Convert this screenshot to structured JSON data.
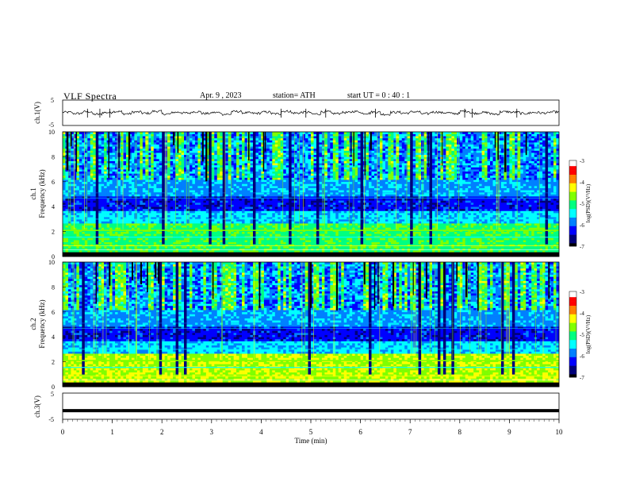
{
  "header": {
    "title": "VLF  Spectra",
    "date": "Apr. 9  , 2023",
    "station": "station= ATH",
    "start": "start  UT  =    0  : 40 : 1"
  },
  "chart_data": [
    {
      "type": "line",
      "panel": "ch1-waveform",
      "ylabel": "ch.1(V)",
      "ylim": [
        -5,
        5
      ],
      "yticks": [
        "5",
        "-5"
      ],
      "series": [
        {
          "values": [
            0.2,
            -0.3,
            0.4,
            -0.6,
            0.1,
            0.5,
            -0.4,
            0.3,
            -0.2,
            0.6,
            -0.5,
            0.2,
            -0.1,
            0.4,
            -0.3,
            0.1,
            -0.6,
            0.5,
            0.0,
            -0.2,
            0.3,
            -0.4,
            0.6,
            -0.1,
            0.2,
            -0.5,
            0.4,
            -0.3,
            0.1,
            0.5,
            -0.2,
            0.3,
            -0.6,
            0.2,
            -0.1,
            0.4,
            -0.4,
            0.3,
            0.0,
            -0.3,
            0.6,
            -0.2,
            0.1,
            -0.5,
            0.4,
            0.2,
            -0.3,
            0.1,
            -0.1,
            0.3
          ]
        }
      ],
      "spikes": [
        0.5,
        0.75,
        0.95,
        4.4,
        4.9,
        5.3,
        6.3,
        8.1,
        8.25,
        9.15
      ]
    },
    {
      "type": "heatmap",
      "panel": "ch1-spectrogram",
      "ylabel": "ch.1\nFrequency  (kHz)",
      "ylim": [
        0,
        10
      ],
      "yticks": [
        "0",
        "2",
        "4",
        "6",
        "8",
        "10"
      ],
      "colorbar": {
        "label": "log(PSD)(V²/Hz)",
        "ticks": [
          "-3",
          "-4",
          "-5",
          "-6",
          "-7"
        ],
        "range": [
          -7,
          -3
        ]
      }
    },
    {
      "type": "heatmap",
      "panel": "ch2-spectrogram",
      "ylabel": "ch.2\nFrequency  (kHz)",
      "ylim": [
        0,
        10
      ],
      "yticks": [
        "0",
        "2",
        "4",
        "6",
        "8",
        "10"
      ],
      "colorbar": {
        "label": "log(PSD)(V²/Hz)",
        "ticks": [
          "-3",
          "-4",
          "-5",
          "-6",
          "-7"
        ],
        "range": [
          -7,
          -3
        ]
      }
    },
    {
      "type": "line",
      "panel": "ch3-waveform",
      "ylabel": "ch.3(V)",
      "ylim": [
        -5,
        5
      ],
      "yticks": [
        "5",
        "-5"
      ],
      "series": [
        {
          "values": [
            -1.7,
            -1.7
          ]
        }
      ]
    }
  ],
  "xaxis": {
    "label": "Time  (min)",
    "ticks": [
      "0",
      "1",
      "2",
      "3",
      "4",
      "5",
      "6",
      "7",
      "8",
      "9",
      "10"
    ],
    "xlim": [
      0,
      10
    ]
  },
  "colors": {
    "colormap": [
      "#000000",
      "#00007a",
      "#0000ff",
      "#0080ff",
      "#00ffff",
      "#00ff80",
      "#80ff00",
      "#ffff00",
      "#ff8000",
      "#ff0000",
      "#ffffff"
    ]
  }
}
